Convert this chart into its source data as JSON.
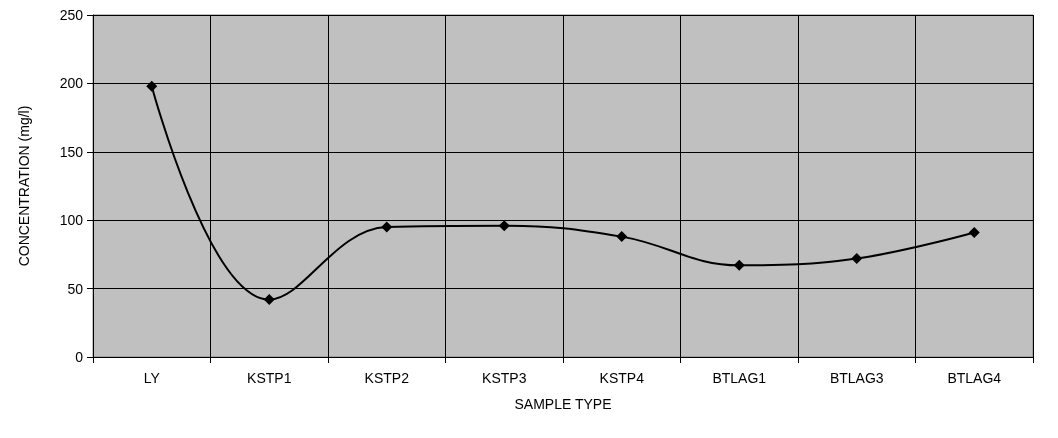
{
  "chart_data": {
    "type": "line",
    "xlabel": "SAMPLE TYPE",
    "ylabel": "CONCENTRATION (mg/l)",
    "categories": [
      "LY",
      "KSTP1",
      "KSTP2",
      "KSTP3",
      "KSTP4",
      "BTLAG1",
      "BTLAG3",
      "BTLAG4"
    ],
    "series": [
      {
        "color": "#000000",
        "values": [
          198,
          42,
          95,
          96,
          88,
          67,
          72,
          91
        ]
      }
    ],
    "ylim": [
      0,
      250
    ],
    "yticks": [
      0,
      50,
      100,
      150,
      200,
      250
    ],
    "grid": true,
    "marker": "diamond",
    "line_style": "solid"
  }
}
